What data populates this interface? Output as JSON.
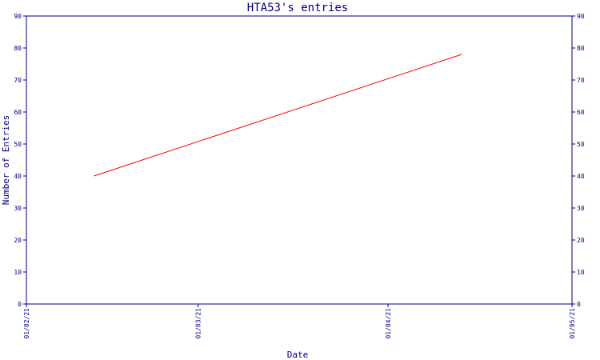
{
  "chart_data": {
    "type": "line",
    "title": "HTA53's entries",
    "xlabel": "Date",
    "ylabel": "Number of Entries",
    "x_ticks": [
      "01/02/21",
      "01/03/21",
      "01/04/21",
      "01/05/21"
    ],
    "x_range": [
      "01/02/21",
      "01/05/21"
    ],
    "ylim": [
      0,
      90
    ],
    "y_ticks": [
      0,
      10,
      20,
      30,
      40,
      50,
      60,
      70,
      80,
      90
    ],
    "y_ticks_right": [
      0,
      10,
      20,
      30,
      40,
      50,
      60,
      70,
      80,
      90
    ],
    "grid": false,
    "legend": "none",
    "series": [
      {
        "color": "#ff0000",
        "x": [
          "12/02/21",
          "13/04/21"
        ],
        "y": [
          40,
          78
        ]
      }
    ],
    "colors": {
      "axis": "#000080",
      "text": "#000080",
      "line": "#ff0000",
      "background": "#ffffff"
    }
  }
}
